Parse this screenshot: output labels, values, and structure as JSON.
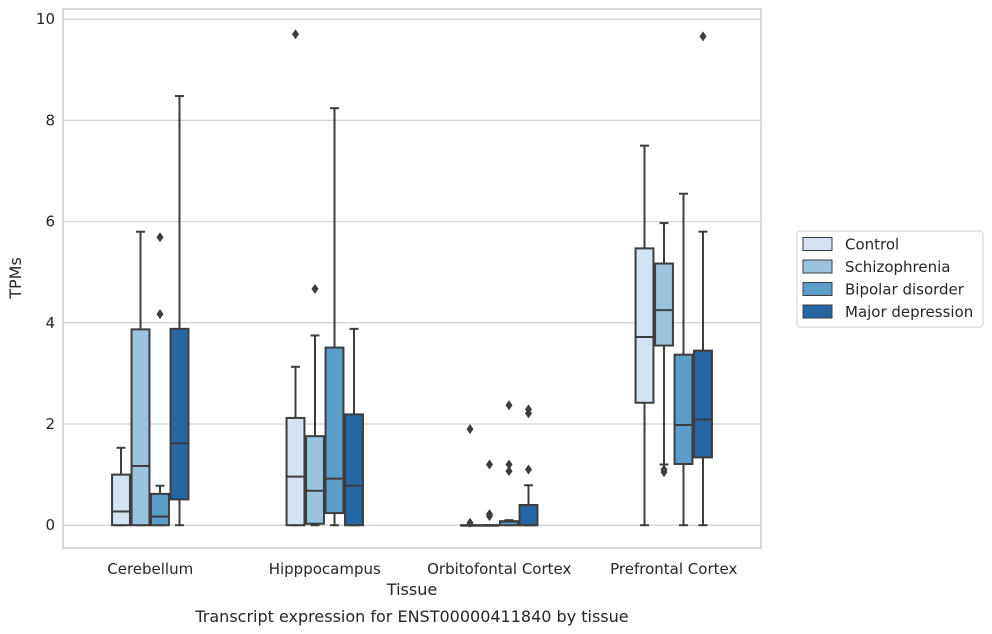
{
  "chart_data": {
    "type": "box",
    "title": "",
    "caption": "Transcript expression for ENST00000411840 by tissue",
    "xlabel": "Tissue",
    "ylabel": "TPMs",
    "ylim": [
      -0.45,
      10.2
    ],
    "yticks": [
      0,
      2,
      4,
      6,
      8,
      10
    ],
    "grid": "horizontal",
    "legend_position": "right",
    "categories": [
      "Cerebellum",
      "Hipppocampus",
      "Orbitofontal Cortex",
      "Prefrontal Cortex"
    ],
    "series": [
      {
        "name": "Control",
        "color": "#d3e3f3",
        "boxes": [
          {
            "min": 0,
            "q1": 0,
            "median": 0.27,
            "q3": 1.0,
            "max": 1.53,
            "outliers": []
          },
          {
            "min": 0,
            "q1": 0,
            "median": 0.96,
            "q3": 2.12,
            "max": 3.13,
            "outliers": [
              9.7
            ]
          },
          {
            "min": 0,
            "q1": 0,
            "median": 0,
            "q3": 0,
            "max": 0,
            "outliers": [
              0.05,
              1.9
            ]
          },
          {
            "min": 0,
            "q1": 2.42,
            "median": 3.72,
            "q3": 5.47,
            "max": 7.5,
            "outliers": []
          }
        ]
      },
      {
        "name": "Schizophrenia",
        "color": "#9ac3dd",
        "boxes": [
          {
            "min": 0,
            "q1": 0,
            "median": 1.17,
            "q3": 3.87,
            "max": 5.8,
            "outliers": []
          },
          {
            "min": 0,
            "q1": 0.03,
            "median": 0.68,
            "q3": 1.76,
            "max": 3.75,
            "outliers": [
              4.67
            ]
          },
          {
            "min": 0,
            "q1": 0,
            "median": 0,
            "q3": 0,
            "max": 0,
            "outliers": [
              0.18,
              0.22,
              1.2
            ]
          },
          {
            "min": 1.2,
            "q1": 3.55,
            "median": 4.25,
            "q3": 5.17,
            "max": 5.97,
            "outliers": [
              1.05,
              1.1
            ]
          }
        ]
      },
      {
        "name": "Bipolar disorder",
        "color": "#5b9ec9",
        "boxes": [
          {
            "min": 0,
            "q1": 0,
            "median": 0.17,
            "q3": 0.62,
            "max": 0.78,
            "outliers": [
              4.17,
              5.69
            ]
          },
          {
            "min": 0,
            "q1": 0.24,
            "median": 0.92,
            "q3": 3.51,
            "max": 8.24,
            "outliers": []
          },
          {
            "min": 0,
            "q1": 0,
            "median": 0.07,
            "q3": 0.08,
            "max": 0.1,
            "outliers": [
              1.07,
              1.2,
              2.37
            ]
          },
          {
            "min": 0,
            "q1": 1.21,
            "median": 1.98,
            "q3": 3.37,
            "max": 6.55,
            "outliers": []
          }
        ]
      },
      {
        "name": "Major depression",
        "color": "#2567a5",
        "boxes": [
          {
            "min": 0,
            "q1": 0.51,
            "median": 1.62,
            "q3": 3.88,
            "max": 8.48,
            "outliers": []
          },
          {
            "min": 0,
            "q1": 0,
            "median": 0.78,
            "q3": 2.19,
            "max": 3.88,
            "outliers": []
          },
          {
            "min": 0,
            "q1": 0,
            "median": 0,
            "q3": 0.4,
            "max": 0.79,
            "outliers": [
              1.1,
              2.21,
              2.29
            ]
          },
          {
            "min": 0,
            "q1": 1.34,
            "median": 2.09,
            "q3": 3.45,
            "max": 5.8,
            "outliers": [
              9.66
            ]
          }
        ]
      }
    ]
  }
}
